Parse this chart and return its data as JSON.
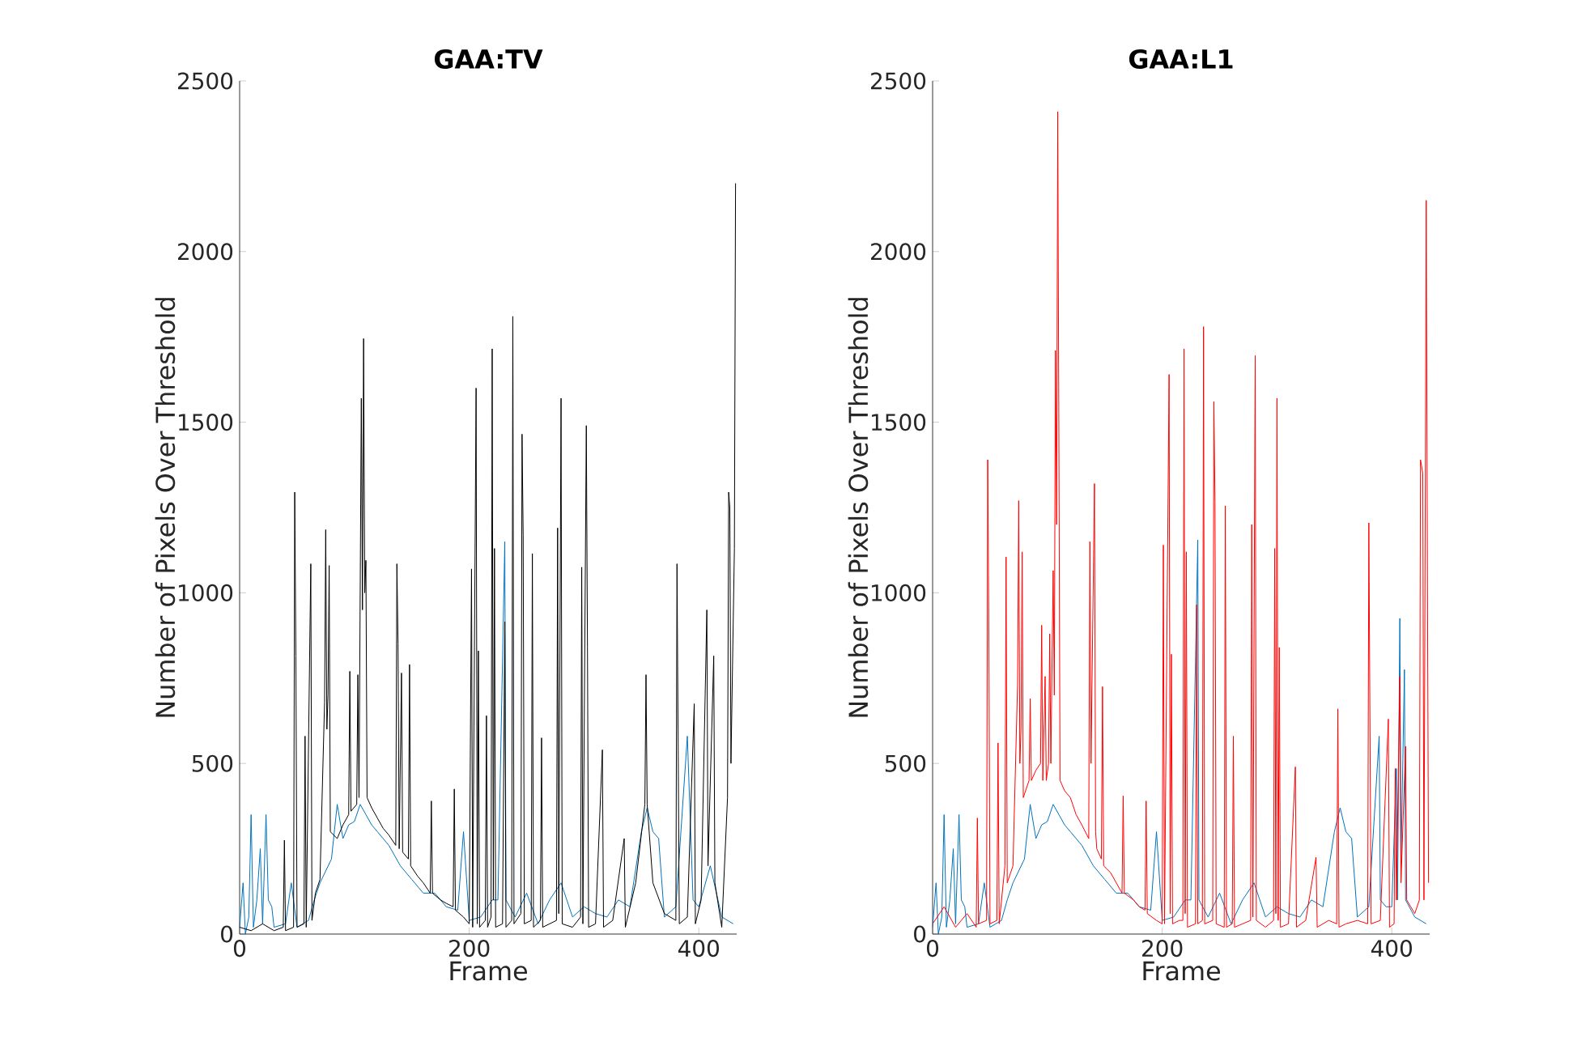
{
  "chart_data": [
    {
      "type": "line",
      "title": "GAA:TV",
      "xlabel": "Frame",
      "ylabel": "Number of Pixels Over Threshold",
      "xlim": [
        0,
        433
      ],
      "ylim": [
        0,
        2500
      ],
      "xticks": [
        0,
        200,
        400
      ],
      "yticks": [
        0,
        500,
        1000,
        1500,
        2000,
        2500
      ],
      "series": [
        {
          "color": "#0072bd",
          "x": [
            0,
            3,
            5,
            8,
            10,
            12,
            15,
            18,
            20,
            23,
            25,
            28,
            30,
            40,
            45,
            50,
            60,
            65,
            70,
            80,
            85,
            90,
            95,
            100,
            105,
            110,
            115,
            120,
            130,
            140,
            150,
            160,
            170,
            180,
            190,
            195,
            200,
            210,
            220,
            225,
            231,
            232,
            240,
            250,
            260,
            270,
            280,
            290,
            300,
            310,
            320,
            330,
            340,
            350,
            355,
            360,
            365,
            370,
            380,
            390,
            395,
            400,
            410,
            420,
            430
          ],
          "values": [
            20,
            150,
            0,
            50,
            350,
            20,
            100,
            250,
            30,
            350,
            100,
            80,
            20,
            30,
            150,
            20,
            40,
            100,
            150,
            220,
            380,
            280,
            320,
            330,
            380,
            350,
            320,
            300,
            260,
            200,
            160,
            120,
            120,
            80,
            70,
            300,
            40,
            50,
            100,
            100,
            1150,
            100,
            50,
            120,
            30,
            100,
            150,
            50,
            80,
            60,
            50,
            100,
            80,
            300,
            370,
            300,
            280,
            50,
            80,
            580,
            100,
            80,
            200,
            50,
            30
          ]
        },
        {
          "color": "#000000",
          "x": [
            0,
            10,
            20,
            30,
            38,
            39,
            40,
            47,
            48,
            49,
            50,
            56,
            57,
            58,
            62,
            63,
            66,
            70,
            74,
            75,
            76,
            77,
            78,
            79,
            85,
            90,
            95,
            96,
            97,
            102,
            103,
            104,
            106,
            107,
            108,
            109,
            110,
            111,
            115,
            120,
            125,
            130,
            136,
            137,
            138,
            139,
            141,
            142,
            147,
            148,
            149,
            155,
            160,
            166,
            167,
            168,
            175,
            180,
            186,
            187,
            188,
            195,
            200,
            202,
            203,
            206,
            207,
            208,
            209,
            214,
            215,
            216,
            219,
            220,
            221,
            222,
            223,
            229,
            231,
            232,
            237,
            238,
            239,
            245,
            246,
            247,
            248,
            254,
            255,
            256,
            262,
            263,
            264,
            270,
            276,
            277,
            278,
            280,
            281,
            290,
            297,
            298,
            299,
            302,
            303,
            304,
            310,
            316,
            317,
            325,
            335,
            336,
            345,
            353,
            354,
            355,
            360,
            370,
            380,
            381,
            382,
            383,
            390,
            396,
            397,
            402,
            407,
            408,
            413,
            414,
            420,
            425,
            426,
            427,
            428,
            431,
            432
          ],
          "values": [
            20,
            10,
            30,
            10,
            20,
            275,
            10,
            20,
            1295,
            815,
            20,
            30,
            580,
            20,
            1085,
            40,
            120,
            160,
            680,
            1185,
            600,
            700,
            1080,
            300,
            280,
            320,
            350,
            770,
            360,
            380,
            760,
            400,
            1570,
            950,
            1745,
            1000,
            1095,
            400,
            370,
            340,
            310,
            290,
            260,
            1085,
            850,
            250,
            765,
            240,
            220,
            790,
            200,
            170,
            150,
            120,
            390,
            120,
            100,
            90,
            80,
            425,
            70,
            50,
            30,
            1070,
            20,
            1600,
            30,
            830,
            20,
            40,
            640,
            20,
            50,
            1715,
            100,
            1130,
            20,
            30,
            915,
            20,
            40,
            1810,
            30,
            60,
            1465,
            1170,
            30,
            40,
            1115,
            20,
            40,
            575,
            20,
            30,
            40,
            1190,
            60,
            1570,
            30,
            20,
            50,
            1075,
            30,
            1490,
            840,
            20,
            30,
            540,
            20,
            40,
            280,
            20,
            150,
            380,
            760,
            380,
            150,
            60,
            40,
            1085,
            550,
            30,
            50,
            675,
            30,
            100,
            950,
            200,
            815,
            150,
            20,
            400,
            1295,
            1250,
            500,
            1130,
            2200
          ]
        }
      ]
    },
    {
      "type": "line",
      "title": "GAA:L1",
      "xlabel": "Frame",
      "ylabel": "Number of Pixels Over Threshold",
      "xlim": [
        0,
        433
      ],
      "ylim": [
        0,
        2500
      ],
      "xticks": [
        0,
        200,
        400
      ],
      "yticks": [
        0,
        500,
        1000,
        1500,
        2000,
        2500
      ],
      "series": [
        {
          "color": "#0072bd",
          "x": [
            0,
            3,
            5,
            8,
            10,
            12,
            15,
            18,
            20,
            23,
            25,
            28,
            30,
            40,
            45,
            50,
            60,
            65,
            70,
            80,
            85,
            90,
            95,
            100,
            105,
            110,
            115,
            120,
            130,
            140,
            150,
            160,
            170,
            180,
            190,
            195,
            200,
            210,
            220,
            225,
            231,
            232,
            240,
            250,
            260,
            270,
            280,
            290,
            300,
            310,
            320,
            330,
            340,
            350,
            355,
            360,
            365,
            370,
            380,
            389,
            390,
            395,
            400,
            404,
            405,
            407,
            408,
            411,
            412,
            420,
            430
          ],
          "values": [
            20,
            150,
            0,
            50,
            350,
            20,
            100,
            250,
            30,
            350,
            100,
            80,
            20,
            30,
            150,
            20,
            40,
            100,
            150,
            220,
            380,
            280,
            320,
            330,
            380,
            350,
            320,
            300,
            260,
            200,
            160,
            120,
            120,
            80,
            70,
            300,
            40,
            50,
            100,
            100,
            1155,
            100,
            50,
            120,
            30,
            100,
            150,
            50,
            80,
            60,
            50,
            100,
            80,
            300,
            370,
            300,
            280,
            50,
            80,
            580,
            100,
            80,
            80,
            485,
            100,
            925,
            200,
            775,
            100,
            50,
            30
          ]
        },
        {
          "color": "#ff0000",
          "x": [
            0,
            10,
            20,
            30,
            38,
            39,
            40,
            47,
            48,
            49,
            50,
            56,
            57,
            58,
            63,
            64,
            65,
            70,
            74,
            75,
            76,
            77,
            78,
            79,
            84,
            85,
            86,
            90,
            94,
            95,
            96,
            98,
            99,
            101,
            102,
            103,
            105,
            106,
            107,
            108,
            109,
            110,
            111,
            115,
            120,
            125,
            130,
            136,
            137,
            138,
            141,
            142,
            143,
            147,
            148,
            149,
            155,
            160,
            165,
            166,
            167,
            175,
            180,
            185,
            186,
            187,
            195,
            200,
            201,
            202,
            206,
            207,
            208,
            209,
            215,
            218,
            219,
            220,
            221,
            222,
            229,
            230,
            231,
            235,
            236,
            237,
            244,
            245,
            246,
            247,
            254,
            255,
            256,
            261,
            262,
            263,
            270,
            277,
            278,
            279,
            281,
            282,
            290,
            297,
            298,
            299,
            300,
            301,
            302,
            303,
            310,
            316,
            317,
            325,
            334,
            335,
            345,
            352,
            353,
            354,
            360,
            370,
            379,
            380,
            381,
            382,
            390,
            397,
            398,
            402,
            403,
            404,
            407,
            408,
            412,
            413,
            420,
            424,
            425,
            427,
            428,
            430,
            431,
            432
          ],
          "values": [
            30,
            80,
            20,
            60,
            20,
            340,
            30,
            40,
            1390,
            880,
            30,
            40,
            560,
            30,
            200,
            1105,
            150,
            200,
            730,
            1270,
            500,
            600,
            1120,
            400,
            450,
            690,
            450,
            480,
            500,
            905,
            450,
            755,
            450,
            500,
            880,
            500,
            1065,
            700,
            1710,
            1200,
            2410,
            1440,
            450,
            420,
            400,
            350,
            320,
            280,
            1150,
            500,
            1320,
            300,
            250,
            220,
            725,
            200,
            180,
            150,
            120,
            405,
            120,
            100,
            80,
            70,
            390,
            60,
            40,
            30,
            1140,
            30,
            1640,
            60,
            820,
            30,
            40,
            40,
            1715,
            60,
            1120,
            20,
            30,
            965,
            30,
            40,
            1780,
            30,
            40,
            1560,
            1265,
            30,
            20,
            1255,
            20,
            30,
            580,
            20,
            30,
            40,
            1200,
            50,
            1695,
            40,
            20,
            40,
            1130,
            60,
            1570,
            40,
            840,
            20,
            30,
            490,
            20,
            40,
            225,
            20,
            40,
            30,
            660,
            20,
            30,
            40,
            30,
            1205,
            600,
            30,
            40,
            630,
            20,
            30,
            485,
            100,
            755,
            150,
            550,
            100,
            60,
            100,
            1390,
            1350,
            100,
            2150,
            1080,
            150
          ]
        }
      ]
    }
  ]
}
